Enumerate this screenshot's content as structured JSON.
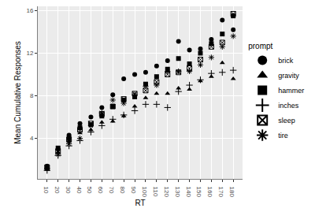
{
  "chart_data": {
    "type": "scatter",
    "x_label": "RT",
    "y_label": "Mean Cumulative Responses",
    "legend_title": "prompt",
    "legend": "right",
    "grid": true,
    "x": [
      10,
      20,
      30,
      40,
      50,
      60,
      70,
      80,
      90,
      100,
      110,
      120,
      130,
      140,
      150,
      160,
      170,
      180
    ],
    "xlim": [
      1.5,
      188.5
    ],
    "xticks": [
      10,
      20,
      30,
      40,
      50,
      60,
      70,
      80,
      90,
      100,
      110,
      120,
      130,
      140,
      150,
      160,
      170,
      180
    ],
    "ylim": [
      0.2,
      16.4
    ],
    "yticks": [
      4,
      8,
      12,
      16
    ],
    "series": [
      {
        "name": "brick",
        "color": "#000000",
        "marker": "circle",
        "values": [
          1.4,
          3.0,
          4.3,
          5.4,
          6.0,
          6.9,
          8.1,
          9.6,
          10.0,
          10.2,
          10.8,
          11.3,
          13.1,
          12.3,
          12.4,
          13.3,
          15.1,
          14.2
        ]
      },
      {
        "name": "gravity",
        "color": "#000000",
        "marker": "triangle-up",
        "values": [
          1.1,
          2.7,
          3.7,
          4.5,
          4.8,
          5.5,
          5.6,
          6.1,
          7.0,
          7.8,
          8.2,
          8.2,
          8.7,
          8.6,
          9.4,
          9.8,
          11.1,
          9.6
        ]
      },
      {
        "name": "hammer",
        "color": "#000000",
        "marker": "square",
        "values": [
          1.2,
          3.1,
          4.0,
          5.0,
          5.3,
          6.1,
          7.0,
          7.6,
          7.9,
          9.1,
          9.8,
          10.5,
          11.5,
          11.0,
          12.0,
          12.9,
          13.8,
          15.5
        ]
      },
      {
        "name": "inches",
        "color": "#000000",
        "marker": "cross-thin-open",
        "values": [
          1.0,
          2.4,
          3.3,
          3.8,
          4.6,
          5.2,
          5.8,
          6.2,
          6.6,
          7.2,
          7.2,
          6.9,
          8.4,
          9.0,
          9.5,
          10.1,
          10.2,
          10.4
        ]
      },
      {
        "name": "sleep",
        "color": "#000000",
        "marker": "square-x-open",
        "values": [
          1.3,
          2.8,
          3.9,
          4.8,
          5.4,
          6.3,
          7.0,
          7.7,
          8.2,
          8.5,
          9.3,
          10.0,
          10.2,
          10.6,
          11.4,
          12.6,
          13.0,
          15.7
        ]
      },
      {
        "name": "tire",
        "color": "#000000",
        "marker": "asterisk-open",
        "values": [
          1.2,
          2.5,
          3.5,
          4.0,
          5.2,
          6.4,
          7.6,
          7.3,
          8.1,
          8.9,
          9.0,
          10.3,
          10.3,
          10.3,
          10.9,
          11.6,
          12.6,
          13.6
        ]
      }
    ]
  }
}
